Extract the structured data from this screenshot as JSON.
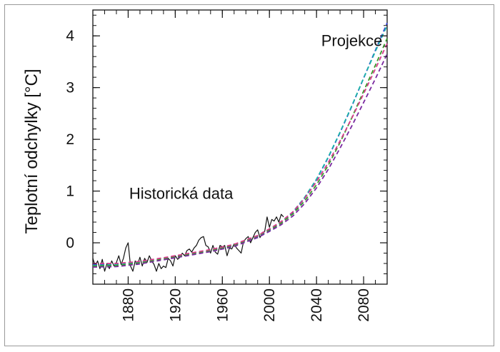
{
  "chart_data": {
    "type": "line",
    "title": "",
    "xlabel": "",
    "ylabel": "Teplotní odchylky [°C]",
    "xlim": [
      1850,
      2100
    ],
    "ylim": [
      -0.8,
      4.5
    ],
    "x_ticks": [
      1880,
      1920,
      1960,
      2000,
      2040,
      2080
    ],
    "y_ticks": [
      0,
      1,
      2,
      3,
      4
    ],
    "grid": false,
    "legend": "none",
    "annotations": [
      {
        "text": "Projekce",
        "x": 2070,
        "y": 3.8
      },
      {
        "text": "Historická data",
        "x": 1925,
        "y": 0.85
      }
    ],
    "series": [
      {
        "color": "#111111",
        "style": "solid",
        "x": [
          1850,
          1852,
          1854,
          1856,
          1858,
          1860,
          1862,
          1864,
          1866,
          1868,
          1870,
          1872,
          1874,
          1876,
          1878,
          1880,
          1882,
          1884,
          1886,
          1888,
          1890,
          1892,
          1894,
          1896,
          1898,
          1900,
          1902,
          1904,
          1906,
          1908,
          1910,
          1912,
          1914,
          1916,
          1918,
          1920,
          1922,
          1924,
          1926,
          1928,
          1930,
          1932,
          1934,
          1936,
          1938,
          1940,
          1942,
          1944,
          1946,
          1948,
          1950,
          1952,
          1954,
          1956,
          1958,
          1960,
          1962,
          1964,
          1966,
          1968,
          1970,
          1972,
          1974,
          1976,
          1978,
          1980,
          1982,
          1984,
          1986,
          1988,
          1990,
          1992,
          1994,
          1996,
          1998,
          2000,
          2002,
          2004,
          2006,
          2008,
          2010,
          2012
        ],
        "y": [
          -0.3,
          -0.45,
          -0.35,
          -0.5,
          -0.32,
          -0.55,
          -0.4,
          -0.5,
          -0.35,
          -0.45,
          -0.38,
          -0.25,
          -0.42,
          -0.3,
          -0.1,
          0.0,
          -0.45,
          -0.55,
          -0.35,
          -0.42,
          -0.28,
          -0.45,
          -0.3,
          -0.38,
          -0.25,
          -0.35,
          -0.42,
          -0.55,
          -0.4,
          -0.5,
          -0.45,
          -0.48,
          -0.3,
          -0.35,
          -0.45,
          -0.25,
          -0.32,
          -0.28,
          -0.2,
          -0.25,
          -0.15,
          -0.12,
          -0.18,
          -0.1,
          -0.05,
          0.05,
          0.1,
          0.12,
          -0.05,
          -0.08,
          -0.2,
          -0.05,
          -0.18,
          -0.22,
          -0.05,
          -0.08,
          -0.05,
          -0.25,
          -0.1,
          -0.12,
          -0.02,
          -0.1,
          -0.15,
          -0.2,
          0.02,
          0.08,
          0.12,
          0.0,
          0.1,
          0.2,
          0.25,
          0.1,
          0.2,
          0.22,
          0.5,
          0.3,
          0.45,
          0.42,
          0.5,
          0.4,
          0.55,
          0.5
        ]
      },
      {
        "color": "#3a44d8",
        "style": "dashed",
        "x": [
          1850,
          1870,
          1890,
          1910,
          1930,
          1950,
          1970,
          1990,
          2000,
          2010,
          2020,
          2030,
          2040,
          2050,
          2060,
          2070,
          2080,
          2090,
          2100
        ],
        "y": [
          -0.42,
          -0.42,
          -0.38,
          -0.3,
          -0.22,
          -0.15,
          -0.05,
          0.12,
          0.24,
          0.38,
          0.58,
          0.86,
          1.22,
          1.65,
          2.13,
          2.64,
          3.18,
          3.72,
          4.25
        ]
      },
      {
        "color": "#1bb3a8",
        "style": "dashed",
        "x": [
          1850,
          1870,
          1890,
          1910,
          1930,
          1950,
          1970,
          1990,
          2000,
          2010,
          2020,
          2030,
          2040,
          2050,
          2060,
          2070,
          2080,
          2090,
          2100
        ],
        "y": [
          -0.44,
          -0.42,
          -0.37,
          -0.3,
          -0.23,
          -0.15,
          -0.04,
          0.13,
          0.26,
          0.4,
          0.6,
          0.88,
          1.23,
          1.66,
          2.14,
          2.65,
          3.18,
          3.7,
          4.2
        ]
      },
      {
        "color": "#3a9a2a",
        "style": "dashed",
        "x": [
          1850,
          1870,
          1890,
          1910,
          1930,
          1950,
          1970,
          1990,
          2000,
          2010,
          2020,
          2030,
          2040,
          2050,
          2060,
          2070,
          2080,
          2090,
          2100
        ],
        "y": [
          -0.45,
          -0.44,
          -0.39,
          -0.31,
          -0.23,
          -0.15,
          -0.05,
          0.13,
          0.25,
          0.38,
          0.56,
          0.81,
          1.12,
          1.5,
          1.94,
          2.42,
          2.93,
          3.43,
          3.95
        ]
      },
      {
        "color": "#d83a8c",
        "style": "dashed",
        "x": [
          1850,
          1870,
          1890,
          1910,
          1930,
          1950,
          1970,
          1990,
          2000,
          2010,
          2020,
          2030,
          2040,
          2050,
          2060,
          2070,
          2080,
          2090,
          2100
        ],
        "y": [
          -0.4,
          -0.4,
          -0.36,
          -0.29,
          -0.21,
          -0.13,
          -0.03,
          0.14,
          0.27,
          0.41,
          0.6,
          0.86,
          1.18,
          1.55,
          1.97,
          2.41,
          2.88,
          3.36,
          3.85
        ]
      },
      {
        "color": "#7a2aa0",
        "style": "dashed",
        "x": [
          1850,
          1870,
          1890,
          1910,
          1930,
          1950,
          1970,
          1990,
          2000,
          2010,
          2020,
          2030,
          2040,
          2050,
          2060,
          2070,
          2080,
          2090,
          2100
        ],
        "y": [
          -0.47,
          -0.46,
          -0.41,
          -0.33,
          -0.25,
          -0.17,
          -0.07,
          0.1,
          0.22,
          0.35,
          0.52,
          0.76,
          1.06,
          1.42,
          1.83,
          2.26,
          2.71,
          3.17,
          3.65
        ]
      }
    ]
  }
}
